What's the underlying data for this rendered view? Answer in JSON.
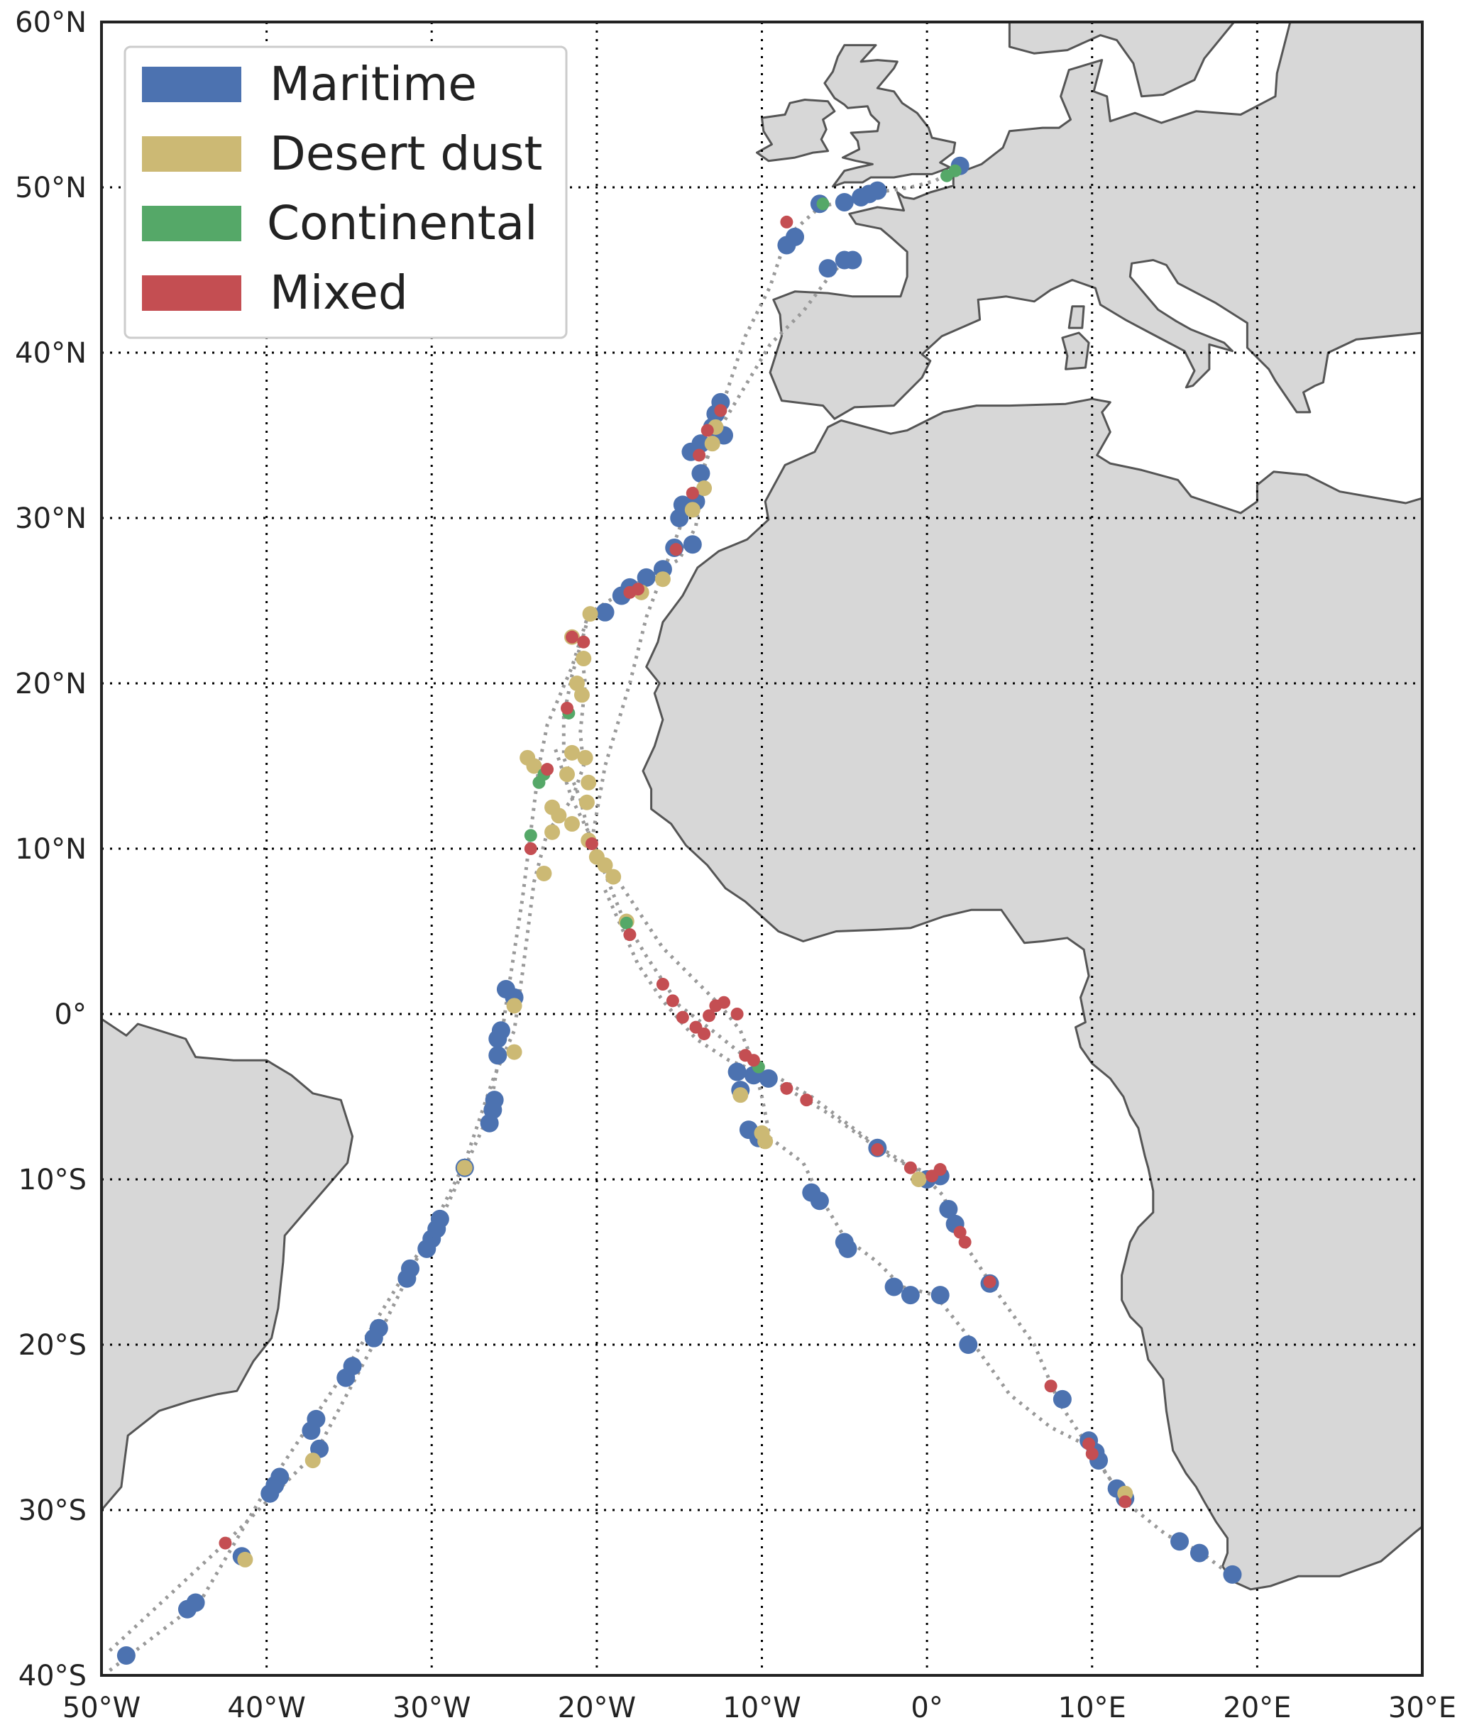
{
  "map": {
    "projection": "equirectangular",
    "extent": {
      "lon": [
        -50,
        30
      ],
      "lat": [
        -40,
        60
      ]
    },
    "grid": "dotted",
    "land_color": "#d7d7d7",
    "coast_color": "#555555",
    "track_color": "#999999"
  },
  "axes": {
    "lat_ticks": [
      {
        "value": 60,
        "label": "60°N"
      },
      {
        "value": 50,
        "label": "50°N"
      },
      {
        "value": 40,
        "label": "40°N"
      },
      {
        "value": 30,
        "label": "30°N"
      },
      {
        "value": 20,
        "label": "20°N"
      },
      {
        "value": 10,
        "label": "10°N"
      },
      {
        "value": 0,
        "label": "0°"
      },
      {
        "value": -10,
        "label": "10°S"
      },
      {
        "value": -20,
        "label": "20°S"
      },
      {
        "value": -30,
        "label": "30°S"
      },
      {
        "value": -40,
        "label": "40°S"
      }
    ],
    "lon_ticks": [
      {
        "value": -50,
        "label": "50°W"
      },
      {
        "value": -40,
        "label": "40°W"
      },
      {
        "value": -30,
        "label": "30°W"
      },
      {
        "value": -20,
        "label": "20°W"
      },
      {
        "value": -10,
        "label": "10°W"
      },
      {
        "value": 0,
        "label": "0°"
      },
      {
        "value": 10,
        "label": "10°E"
      },
      {
        "value": 20,
        "label": "20°E"
      },
      {
        "value": 30,
        "label": "30°E"
      }
    ]
  },
  "legend": {
    "position": "top-left",
    "items": [
      {
        "label": "Maritime",
        "color": "#4c72b0",
        "key": "maritime"
      },
      {
        "label": "Desert dust",
        "color": "#ccb974",
        "key": "dust"
      },
      {
        "label": "Continental",
        "color": "#55a868",
        "key": "continental"
      },
      {
        "label": "Mixed",
        "color": "#c44e52",
        "key": "mixed"
      }
    ]
  },
  "tracks": [
    [
      [
        -49.5,
        -39.7
      ],
      [
        -44,
        -35.5
      ],
      [
        -40,
        -28.7
      ],
      [
        -35.5,
        -22
      ],
      [
        -31.5,
        -15.5
      ],
      [
        -29.5,
        -12.5
      ],
      [
        -28,
        -9.3
      ],
      [
        -26.5,
        -6
      ],
      [
        -26,
        -3
      ],
      [
        -25.5,
        0.5
      ],
      [
        -24.5,
        7
      ],
      [
        -24,
        11
      ],
      [
        -23.5,
        15
      ],
      [
        -23,
        17.5
      ],
      [
        -21.5,
        21
      ],
      [
        -20.5,
        24.2
      ],
      [
        -18,
        25.8
      ],
      [
        -15,
        27.5
      ],
      [
        -14,
        29.5
      ],
      [
        -13.5,
        33
      ],
      [
        -12.5,
        36.5
      ],
      [
        -11,
        41
      ],
      [
        -9.5,
        44
      ],
      [
        -8.5,
        47
      ],
      [
        -6.5,
        48.8
      ],
      [
        -3,
        49.7
      ],
      [
        -1,
        50
      ],
      [
        0.5,
        50.4
      ],
      [
        1.5,
        51
      ]
    ],
    [
      [
        -49.5,
        -38.5
      ],
      [
        -42.5,
        -32
      ],
      [
        -37,
        -26.5
      ],
      [
        -33,
        -19
      ],
      [
        -30,
        -13
      ],
      [
        -28,
        -9
      ],
      [
        -26.3,
        -4
      ],
      [
        -25,
        -1
      ],
      [
        -24.5,
        2.5
      ],
      [
        -23.8,
        8
      ],
      [
        -23,
        11
      ],
      [
        -21.5,
        13
      ],
      [
        -20.8,
        15
      ],
      [
        -21,
        17
      ],
      [
        -20.7,
        20
      ],
      [
        -21,
        22.5
      ]
    ],
    [
      [
        -20.5,
        24
      ],
      [
        -21.5,
        20.5
      ],
      [
        -22,
        18
      ],
      [
        -22,
        15.5
      ],
      [
        -21,
        13
      ],
      [
        -20.5,
        11
      ],
      [
        -19.5,
        8.5
      ],
      [
        -18.5,
        6
      ],
      [
        -17,
        3.5
      ],
      [
        -15,
        0.5
      ],
      [
        -13,
        -1
      ],
      [
        -10.5,
        -3
      ],
      [
        -7,
        -5
      ],
      [
        -3,
        -8
      ],
      [
        -0.5,
        -9.5
      ],
      [
        1,
        -11
      ],
      [
        2,
        -13.5
      ],
      [
        4,
        -16.5
      ],
      [
        6.5,
        -20
      ],
      [
        8,
        -23.5
      ],
      [
        10,
        -26.5
      ],
      [
        12,
        -29.5
      ],
      [
        14.5,
        -31.5
      ],
      [
        16.5,
        -32.5
      ],
      [
        18.5,
        -34
      ]
    ],
    [
      [
        -22.5,
        16
      ],
      [
        -21.5,
        13
      ],
      [
        -20,
        10
      ],
      [
        -18,
        7
      ],
      [
        -16,
        4
      ],
      [
        -14,
        2
      ],
      [
        -12.5,
        0.5
      ],
      [
        -11.3,
        -1
      ],
      [
        -10.5,
        -3
      ],
      [
        -10,
        -5
      ],
      [
        -9.5,
        -7.5
      ],
      [
        -7.5,
        -9
      ],
      [
        -6.5,
        -11
      ],
      [
        -5,
        -13.5
      ],
      [
        -3,
        -15
      ],
      [
        -1.5,
        -16.5
      ],
      [
        0.5,
        -17
      ],
      [
        2.5,
        -19.5
      ],
      [
        5,
        -23
      ],
      [
        7.5,
        -25
      ],
      [
        9.5,
        -26
      ],
      [
        11,
        -28
      ],
      [
        12,
        -29.5
      ]
    ],
    [
      [
        -20.3,
        10.5
      ],
      [
        -19.5,
        15
      ],
      [
        -18,
        20
      ],
      [
        -17,
        24
      ],
      [
        -15.5,
        28
      ],
      [
        -14,
        32
      ],
      [
        -12.5,
        35.5
      ],
      [
        -11,
        38
      ],
      [
        -9.5,
        40.5
      ],
      [
        -7.5,
        42.5
      ],
      [
        -6,
        44.5
      ],
      [
        -4.8,
        45.8
      ]
    ],
    [
      [
        -19.5,
        7.5
      ],
      [
        -17.5,
        3
      ],
      [
        -16,
        0.8
      ],
      [
        -14,
        -1.5
      ],
      [
        -12,
        -2.8
      ],
      [
        -10,
        -3.6
      ],
      [
        -6,
        -6
      ],
      [
        -2,
        -8.8
      ],
      [
        1,
        -10
      ]
    ]
  ],
  "observations": {
    "maritime": [
      [
        -48.5,
        -38.8
      ],
      [
        -44.8,
        -36.0
      ],
      [
        -44.3,
        -35.6
      ],
      [
        -41.5,
        -32.8
      ],
      [
        -39.8,
        -29.0
      ],
      [
        -39.5,
        -28.5
      ],
      [
        -39.2,
        -28.0
      ],
      [
        -37.3,
        -25.2
      ],
      [
        -37.0,
        -24.5
      ],
      [
        -36.8,
        -26.3
      ],
      [
        -35.2,
        -22.0
      ],
      [
        -34.8,
        -21.3
      ],
      [
        -33.5,
        -19.6
      ],
      [
        -33.2,
        -19.0
      ],
      [
        -31.5,
        -16.0
      ],
      [
        -31.3,
        -15.4
      ],
      [
        -30.3,
        -14.2
      ],
      [
        -30.0,
        -13.6
      ],
      [
        -29.7,
        -13.0
      ],
      [
        -29.5,
        -12.4
      ],
      [
        -28.0,
        -9.3
      ],
      [
        -26.5,
        -6.6
      ],
      [
        -26.3,
        -5.8
      ],
      [
        -26.2,
        -5.2
      ],
      [
        -26.0,
        -2.5
      ],
      [
        -26.0,
        -1.5
      ],
      [
        -25.8,
        -1.0
      ],
      [
        -25.5,
        1.5
      ],
      [
        -25.0,
        1.0
      ],
      [
        -19.5,
        24.3
      ],
      [
        -18.5,
        25.3
      ],
      [
        -18.0,
        25.8
      ],
      [
        -17.0,
        26.4
      ],
      [
        -16.0,
        26.9
      ],
      [
        -15.3,
        28.2
      ],
      [
        -14.2,
        28.4
      ],
      [
        -15.0,
        30.0
      ],
      [
        -14.8,
        30.8
      ],
      [
        -14.0,
        31.0
      ],
      [
        -13.7,
        32.7
      ],
      [
        -14.3,
        34.0
      ],
      [
        -13.7,
        34.5
      ],
      [
        -13.0,
        35.5
      ],
      [
        -12.8,
        36.3
      ],
      [
        -12.5,
        37.0
      ],
      [
        -12.3,
        35.0
      ],
      [
        -8.5,
        46.5
      ],
      [
        -8.0,
        47.0
      ],
      [
        -6.5,
        49.0
      ],
      [
        -5.0,
        49.1
      ],
      [
        -4.0,
        49.4
      ],
      [
        -3.5,
        49.6
      ],
      [
        -3.0,
        49.8
      ],
      [
        -6.0,
        45.1
      ],
      [
        -5.0,
        45.6
      ],
      [
        -4.5,
        45.6
      ],
      [
        2.0,
        51.3
      ],
      [
        -11.5,
        -3.5
      ],
      [
        -11.3,
        -4.6
      ],
      [
        -10.5,
        -3.7
      ],
      [
        -9.6,
        -3.9
      ],
      [
        -10.8,
        -7.0
      ],
      [
        -10.2,
        -7.5
      ],
      [
        -7.0,
        -10.8
      ],
      [
        -6.5,
        -11.3
      ],
      [
        -5.0,
        -13.8
      ],
      [
        -4.8,
        -14.2
      ],
      [
        -2.0,
        -16.5
      ],
      [
        -1.0,
        -17.0
      ],
      [
        0.8,
        -17.0
      ],
      [
        2.5,
        -20.0
      ],
      [
        -3.0,
        -8.1
      ],
      [
        0.0,
        -10.0
      ],
      [
        0.8,
        -9.8
      ],
      [
        1.3,
        -11.8
      ],
      [
        1.7,
        -12.7
      ],
      [
        3.8,
        -16.3
      ],
      [
        8.2,
        -23.3
      ],
      [
        9.8,
        -25.8
      ],
      [
        10.2,
        -26.5
      ],
      [
        10.4,
        -27.0
      ],
      [
        11.5,
        -28.7
      ],
      [
        12.0,
        -29.3
      ],
      [
        15.3,
        -31.9
      ],
      [
        16.5,
        -32.6
      ],
      [
        18.5,
        -33.9
      ]
    ],
    "dust": [
      [
        -41.3,
        -33.0
      ],
      [
        -37.2,
        -27.0
      ],
      [
        -28.0,
        -9.3
      ],
      [
        -25.0,
        0.5
      ],
      [
        -25.0,
        -2.3
      ],
      [
        -20.4,
        24.2
      ],
      [
        -17.3,
        25.5
      ],
      [
        -16.0,
        26.3
      ],
      [
        -14.2,
        30.5
      ],
      [
        -13.5,
        31.8
      ],
      [
        -13.0,
        34.5
      ],
      [
        -12.8,
        35.5
      ],
      [
        -21.5,
        22.8
      ],
      [
        -20.8,
        21.5
      ],
      [
        -21.2,
        20.0
      ],
      [
        -20.9,
        19.3
      ],
      [
        -24.2,
        15.5
      ],
      [
        -23.8,
        15.0
      ],
      [
        -21.8,
        14.5
      ],
      [
        -21.5,
        15.8
      ],
      [
        -20.7,
        15.5
      ],
      [
        -20.5,
        14.0
      ],
      [
        -20.6,
        12.8
      ],
      [
        -22.7,
        12.5
      ],
      [
        -22.3,
        12.0
      ],
      [
        -21.5,
        11.5
      ],
      [
        -22.7,
        11.0
      ],
      [
        -20.5,
        10.5
      ],
      [
        -20.0,
        9.5
      ],
      [
        -19.5,
        9.0
      ],
      [
        -19.0,
        8.3
      ],
      [
        -23.2,
        8.5
      ],
      [
        -18.2,
        5.6
      ],
      [
        -11.3,
        -4.9
      ],
      [
        -10.0,
        -7.2
      ],
      [
        -9.8,
        -7.7
      ],
      [
        -0.5,
        -10.0
      ],
      [
        12.0,
        -29.0
      ]
    ],
    "continental": [
      [
        -24.0,
        10.8
      ],
      [
        -23.5,
        14.0
      ],
      [
        -23.2,
        14.5
      ],
      [
        -21.7,
        18.2
      ],
      [
        -18.2,
        5.5
      ],
      [
        -10.2,
        -3.2
      ],
      [
        -6.3,
        49.0
      ],
      [
        1.2,
        50.7
      ],
      [
        1.7,
        51.0
      ]
    ],
    "mixed": [
      [
        -42.5,
        -32.0
      ],
      [
        -24.0,
        10.0
      ],
      [
        -21.5,
        22.8
      ],
      [
        -20.3,
        10.3
      ],
      [
        -20.8,
        22.5
      ],
      [
        -23.0,
        14.8
      ],
      [
        -21.8,
        18.5
      ],
      [
        -18.0,
        25.5
      ],
      [
        -17.5,
        25.7
      ],
      [
        -15.2,
        28.1
      ],
      [
        -14.2,
        31.5
      ],
      [
        -13.8,
        33.8
      ],
      [
        -13.3,
        35.3
      ],
      [
        -12.5,
        36.5
      ],
      [
        -8.5,
        47.9
      ],
      [
        -18.0,
        4.8
      ],
      [
        -16.0,
        1.8
      ],
      [
        -15.4,
        0.8
      ],
      [
        -14.8,
        -0.2
      ],
      [
        -14.0,
        -0.8
      ],
      [
        -13.5,
        -1.2
      ],
      [
        -13.2,
        -0.1
      ],
      [
        -12.8,
        0.5
      ],
      [
        -12.3,
        0.7
      ],
      [
        -11.5,
        0.0
      ],
      [
        -11.0,
        -2.5
      ],
      [
        -10.5,
        -2.8
      ],
      [
        -8.5,
        -4.5
      ],
      [
        -7.3,
        -5.2
      ],
      [
        -3.0,
        -8.2
      ],
      [
        -1.0,
        -9.3
      ],
      [
        0.3,
        -9.8
      ],
      [
        0.8,
        -9.4
      ],
      [
        2.0,
        -13.2
      ],
      [
        2.3,
        -13.8
      ],
      [
        3.8,
        -16.2
      ],
      [
        7.5,
        -22.5
      ],
      [
        9.8,
        -26.0
      ],
      [
        10.0,
        -26.6
      ],
      [
        12.0,
        -29.5
      ]
    ]
  }
}
